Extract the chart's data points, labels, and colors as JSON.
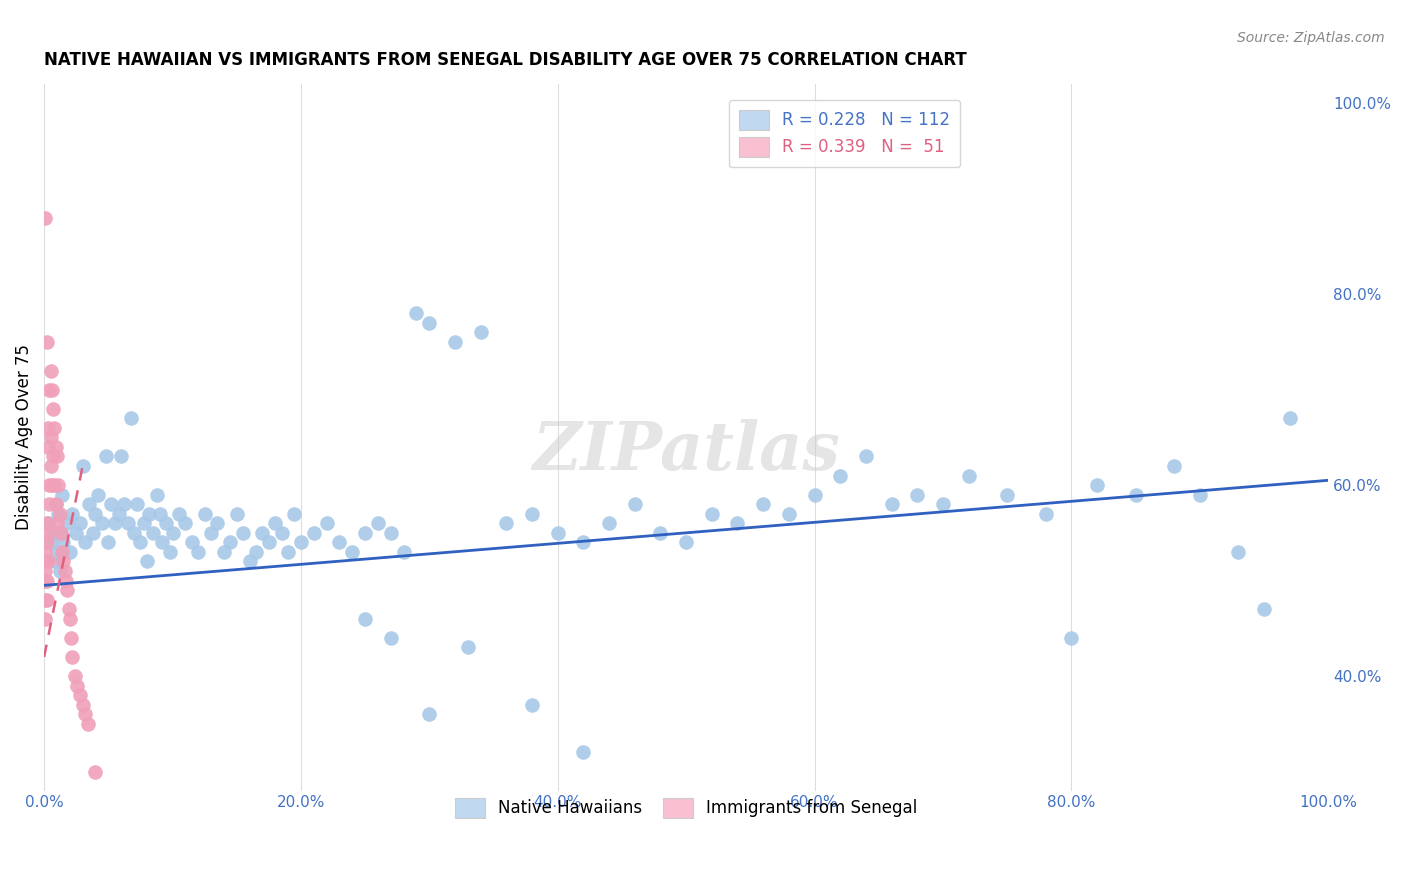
{
  "title": "NATIVE HAWAIIAN VS IMMIGRANTS FROM SENEGAL DISABILITY AGE OVER 75 CORRELATION CHART",
  "source": "Source: ZipAtlas.com",
  "ylabel": "Disability Age Over 75",
  "xlim": [
    0,
    1.0
  ],
  "ylim": [
    0.28,
    1.02
  ],
  "xticks": [
    0,
    0.2,
    0.4,
    0.6,
    0.8,
    1.0
  ],
  "xticklabels": [
    "0.0%",
    "20.0%",
    "40.0%",
    "60.0%",
    "80.0%",
    "100.0%"
  ],
  "yticks_right": [
    0.4,
    0.6,
    0.8,
    1.0
  ],
  "yticklabels_right": [
    "40.0%",
    "60.0%",
    "80.0%",
    "100.0%"
  ],
  "blue_color": "#A8C8E8",
  "pink_color": "#F0A0B8",
  "blue_line_color": "#3060C0",
  "pink_line_color": "#E06080",
  "legend_blue_color": "#C0D8F0",
  "legend_pink_color": "#F8C0D0",
  "R_blue": 0.228,
  "N_blue": 112,
  "R_pink": 0.339,
  "N_pink": 51,
  "blue_regression_x0": 0.0,
  "blue_regression_y0": 0.495,
  "blue_regression_x1": 1.0,
  "blue_regression_y1": 0.605,
  "pink_regression_x0": 0.0,
  "pink_regression_y0": 0.42,
  "pink_regression_x1": 0.03,
  "pink_regression_y1": 0.62,
  "watermark": "ZIPatlas",
  "background_color": "#FFFFFF",
  "grid_color": "#DDDDDD",
  "blue_x": [
    0.003,
    0.005,
    0.007,
    0.008,
    0.009,
    0.01,
    0.011,
    0.012,
    0.013,
    0.014,
    0.015,
    0.018,
    0.02,
    0.022,
    0.025,
    0.028,
    0.03,
    0.032,
    0.035,
    0.038,
    0.04,
    0.042,
    0.045,
    0.048,
    0.05,
    0.052,
    0.055,
    0.058,
    0.06,
    0.062,
    0.065,
    0.068,
    0.07,
    0.072,
    0.075,
    0.078,
    0.08,
    0.082,
    0.085,
    0.088,
    0.09,
    0.092,
    0.095,
    0.098,
    0.1,
    0.105,
    0.11,
    0.115,
    0.12,
    0.125,
    0.13,
    0.135,
    0.14,
    0.145,
    0.15,
    0.155,
    0.16,
    0.165,
    0.17,
    0.175,
    0.18,
    0.185,
    0.19,
    0.195,
    0.2,
    0.21,
    0.22,
    0.23,
    0.24,
    0.25,
    0.26,
    0.27,
    0.28,
    0.29,
    0.3,
    0.32,
    0.34,
    0.36,
    0.38,
    0.4,
    0.42,
    0.44,
    0.46,
    0.48,
    0.5,
    0.52,
    0.54,
    0.56,
    0.58,
    0.6,
    0.62,
    0.64,
    0.66,
    0.68,
    0.7,
    0.72,
    0.75,
    0.78,
    0.8,
    0.82,
    0.85,
    0.88,
    0.9,
    0.93,
    0.95,
    0.97,
    0.25,
    0.27,
    0.3,
    0.33,
    0.38,
    0.42
  ],
  "blue_y": [
    0.56,
    0.54,
    0.55,
    0.52,
    0.58,
    0.53,
    0.57,
    0.51,
    0.55,
    0.59,
    0.54,
    0.56,
    0.53,
    0.57,
    0.55,
    0.56,
    0.62,
    0.54,
    0.58,
    0.55,
    0.57,
    0.59,
    0.56,
    0.63,
    0.54,
    0.58,
    0.56,
    0.57,
    0.63,
    0.58,
    0.56,
    0.67,
    0.55,
    0.58,
    0.54,
    0.56,
    0.52,
    0.57,
    0.55,
    0.59,
    0.57,
    0.54,
    0.56,
    0.53,
    0.55,
    0.57,
    0.56,
    0.54,
    0.53,
    0.57,
    0.55,
    0.56,
    0.53,
    0.54,
    0.57,
    0.55,
    0.52,
    0.53,
    0.55,
    0.54,
    0.56,
    0.55,
    0.53,
    0.57,
    0.54,
    0.55,
    0.56,
    0.54,
    0.53,
    0.55,
    0.56,
    0.55,
    0.53,
    0.78,
    0.77,
    0.75,
    0.76,
    0.56,
    0.57,
    0.55,
    0.54,
    0.56,
    0.58,
    0.55,
    0.54,
    0.57,
    0.56,
    0.58,
    0.57,
    0.59,
    0.61,
    0.63,
    0.58,
    0.59,
    0.58,
    0.61,
    0.59,
    0.57,
    0.44,
    0.6,
    0.59,
    0.62,
    0.59,
    0.53,
    0.47,
    0.67,
    0.46,
    0.44,
    0.36,
    0.43,
    0.37,
    0.32
  ],
  "pink_x": [
    0.001,
    0.001,
    0.001,
    0.001,
    0.001,
    0.002,
    0.002,
    0.002,
    0.002,
    0.002,
    0.003,
    0.003,
    0.003,
    0.003,
    0.004,
    0.004,
    0.004,
    0.005,
    0.005,
    0.005,
    0.006,
    0.006,
    0.007,
    0.007,
    0.008,
    0.008,
    0.009,
    0.009,
    0.01,
    0.01,
    0.011,
    0.012,
    0.013,
    0.014,
    0.015,
    0.016,
    0.017,
    0.018,
    0.019,
    0.02,
    0.021,
    0.022,
    0.024,
    0.026,
    0.028,
    0.03,
    0.032,
    0.034,
    0.04,
    0.002,
    0.001
  ],
  "pink_y": [
    0.53,
    0.51,
    0.5,
    0.48,
    0.46,
    0.56,
    0.54,
    0.52,
    0.5,
    0.48,
    0.66,
    0.64,
    0.52,
    0.55,
    0.7,
    0.6,
    0.58,
    0.72,
    0.65,
    0.62,
    0.7,
    0.6,
    0.68,
    0.63,
    0.66,
    0.6,
    0.64,
    0.58,
    0.63,
    0.56,
    0.6,
    0.57,
    0.55,
    0.53,
    0.52,
    0.51,
    0.5,
    0.49,
    0.47,
    0.46,
    0.44,
    0.42,
    0.4,
    0.39,
    0.38,
    0.37,
    0.36,
    0.35,
    0.3,
    0.75,
    0.88
  ]
}
